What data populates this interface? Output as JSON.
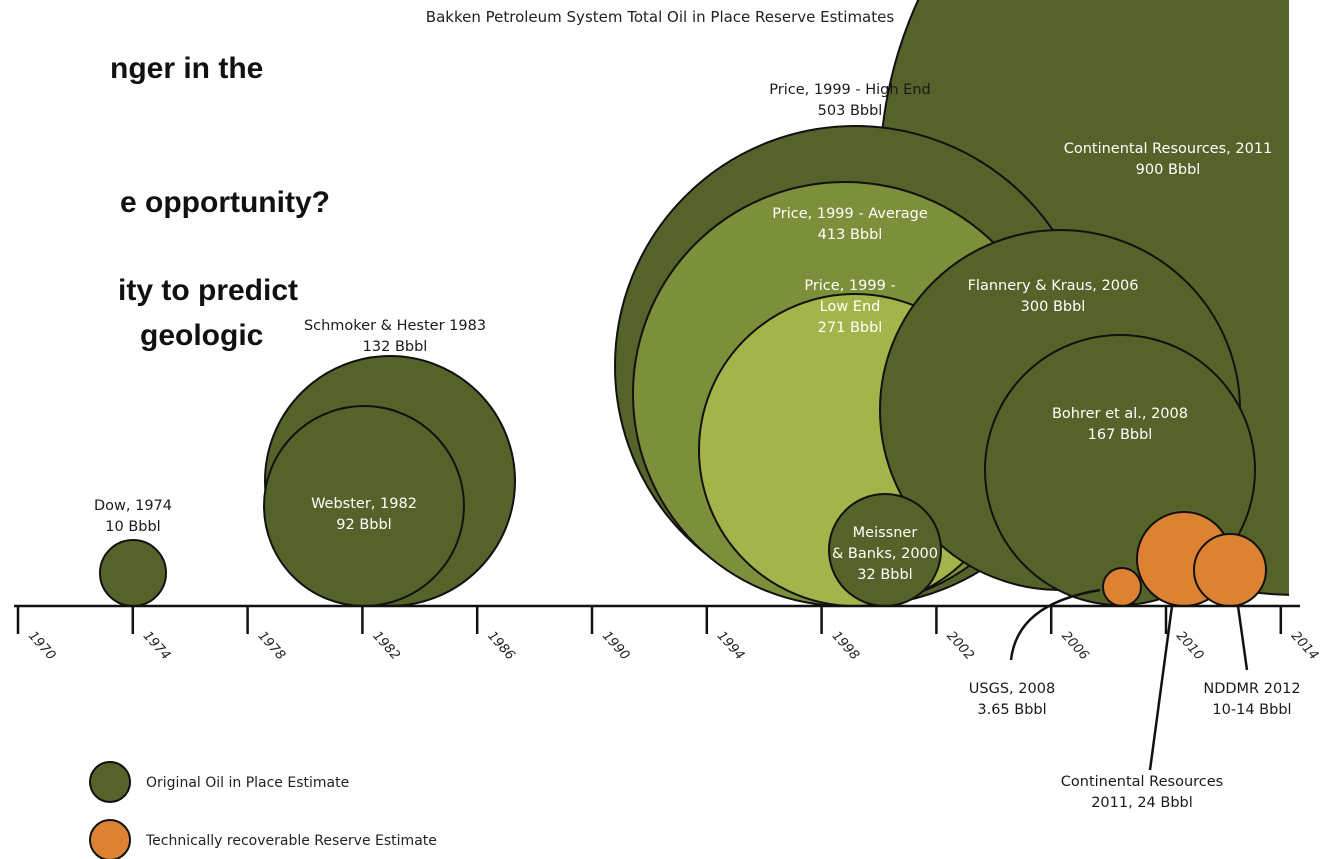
{
  "slide_text": {
    "line1": "nger in the",
    "line2": "e opportunity?",
    "line3": "ity  to predict",
    "line4": "geologic"
  },
  "colors": {
    "oip": "#556229",
    "oip_mid": "#7c8f3a",
    "oip_light": "#a3b54a",
    "recoverable": "#dc8232",
    "axis": "#111111"
  },
  "chart_data": {
    "type": "bubble",
    "title": "Bakken Petroleum System Total Oil in Place Reserve Estimates",
    "x_axis": {
      "ticks": [
        "1970",
        "1974",
        "1978",
        "1982",
        "1986",
        "1990",
        "1994",
        "1998",
        "2002",
        "2006",
        "2010",
        "2014"
      ],
      "range": [
        1970,
        2014
      ]
    },
    "series": [
      {
        "name": "Original Oil in Place Estimate",
        "color": "#556229",
        "points": [
          {
            "label": "Dow, 1974",
            "value_text": "10 Bbbl",
            "year": 1974,
            "value": 10
          },
          {
            "label": "Schmoker & Hester 1983",
            "value_text": "132 Bbbl",
            "year": 1983,
            "value": 132
          },
          {
            "label": "Webster, 1982",
            "value_text": "92 Bbbl",
            "year": 1982,
            "value": 92
          },
          {
            "label": "Price, 1999 - High End",
            "value_text": "503 Bbbl",
            "year": 1999,
            "value": 503
          },
          {
            "label": "Price, 1999 - Average",
            "value_text": "413 Bbbl",
            "year": 1999,
            "value": 413
          },
          {
            "label": "Price, 1999 -",
            "label2": "Low End",
            "value_text": "271 Bbbl",
            "year": 1999,
            "value": 271
          },
          {
            "label": "Meissner",
            "label2": "& Banks, 2000",
            "value_text": "32 Bbbl",
            "year": 2000,
            "value": 32
          },
          {
            "label": "Continental Resources, 2011",
            "value_text": "900 Bbbl",
            "year": 2011,
            "value": 900
          },
          {
            "label": "Flannery & Kraus, 2006",
            "value_text": "300 Bbbl",
            "year": 2006,
            "value": 300
          },
          {
            "label": "Bohrer et al., 2008",
            "value_text": "167 Bbbl",
            "year": 2008,
            "value": 167
          }
        ]
      },
      {
        "name": "Technically recoverable Reserve Estimate",
        "color": "#dc8232",
        "points": [
          {
            "label": "USGS, 2008",
            "value_text": "3.65 Bbbl",
            "year": 2008,
            "value": 3.65
          },
          {
            "label": "Continental Resources",
            "value_text": "2011, 24 Bbbl",
            "year": 2011,
            "value": 24
          },
          {
            "label": "NDDMR 2012",
            "value_text": "10-14 Bbbl",
            "year": 2012,
            "value": 12
          }
        ]
      }
    ],
    "legend": {
      "position": "bottom-left",
      "items": [
        "Original Oil in Place Estimate",
        "Technically recoverable Reserve Estimate"
      ]
    }
  }
}
